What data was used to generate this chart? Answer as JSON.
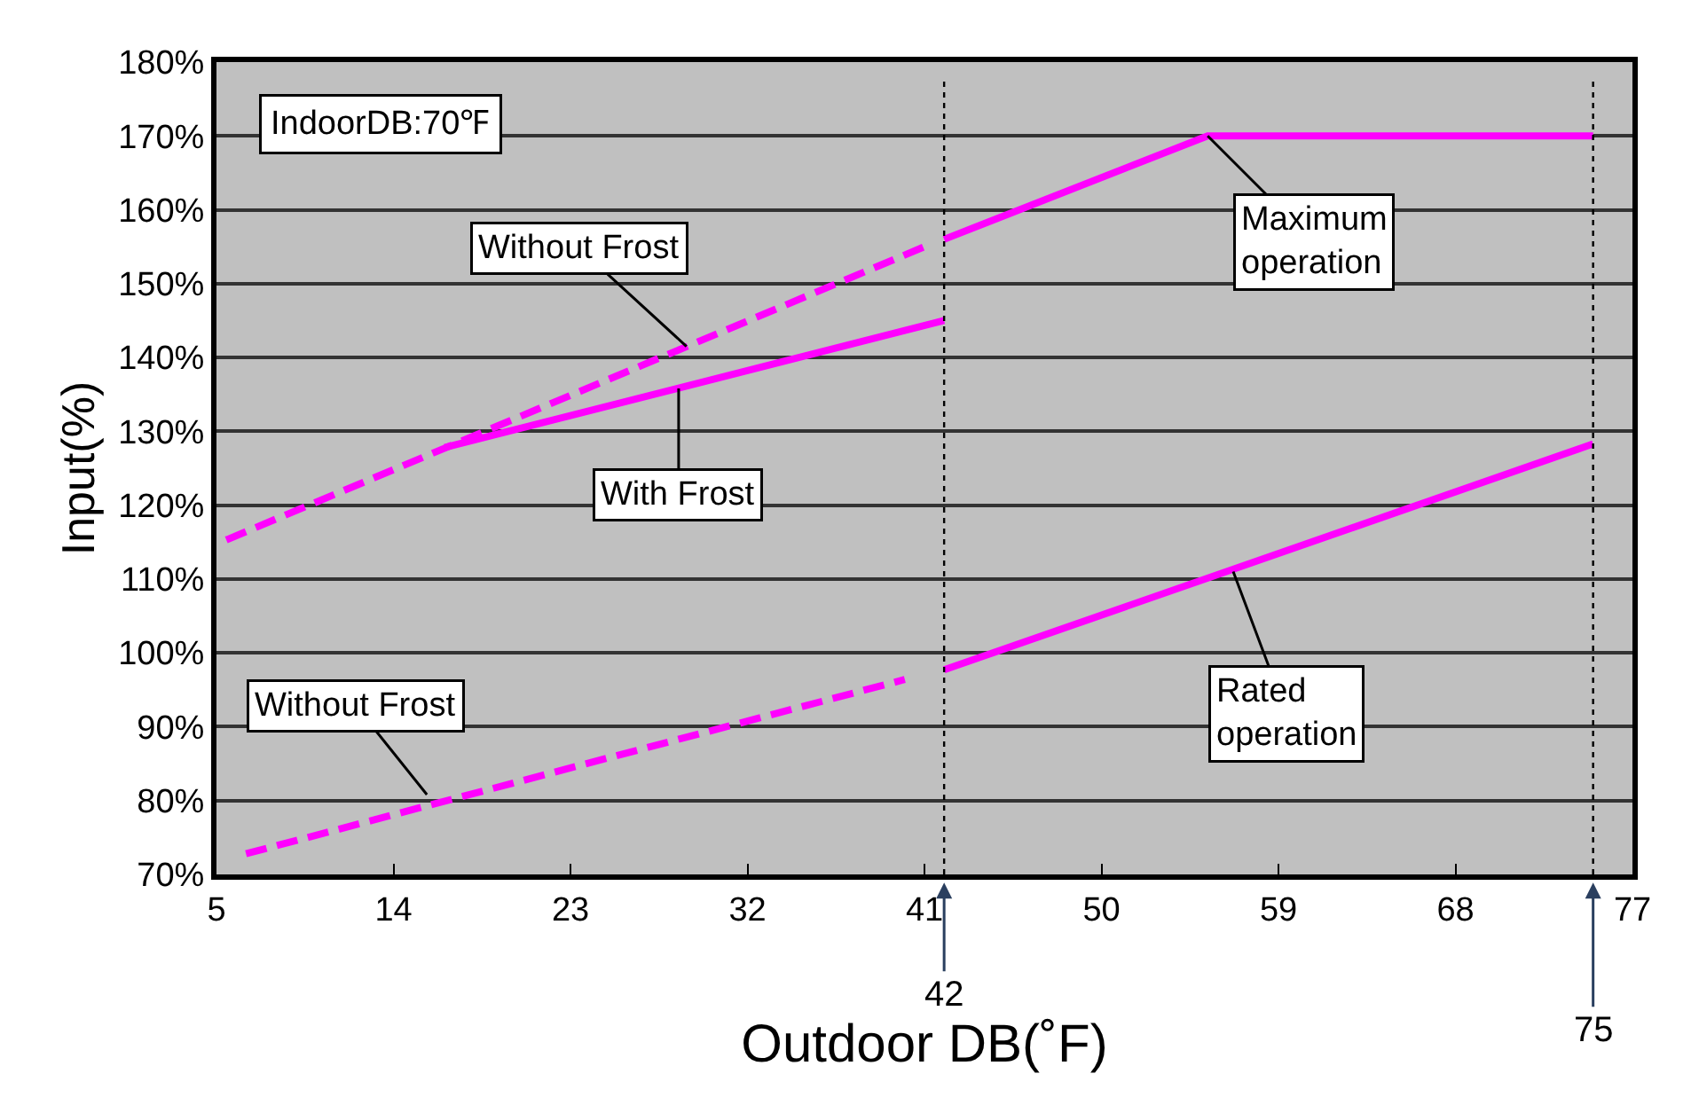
{
  "chart_data": {
    "type": "line",
    "xlabel": "Outdoor DB(˚F)",
    "ylabel": "Input(%)",
    "xlim": [
      5,
      77
    ],
    "xticks": [
      5,
      14,
      23,
      32,
      41,
      50,
      59,
      68,
      77
    ],
    "ylim": [
      70,
      180
    ],
    "yticks": [
      {
        "value": 70,
        "label": "70%"
      },
      {
        "value": 80,
        "label": "80%"
      },
      {
        "value": 90,
        "label": "90%"
      },
      {
        "value": 100,
        "label": "100%"
      },
      {
        "value": 110,
        "label": "110%"
      },
      {
        "value": 120,
        "label": "120%"
      },
      {
        "value": 130,
        "label": "130%"
      },
      {
        "value": 140,
        "label": "140%"
      },
      {
        "value": 150,
        "label": "150%"
      },
      {
        "value": 160,
        "label": "160%"
      },
      {
        "value": 170,
        "label": "170%"
      },
      {
        "value": 180,
        "label": "180%"
      }
    ],
    "grid": "y",
    "marker": "none",
    "series": [
      {
        "color": "#ff00ff",
        "line_style": "dashed",
        "x": [
          5.5,
          41
        ],
        "values": [
          115.3,
          155
        ]
      },
      {
        "color": "#ff00ff",
        "line_style": "solid",
        "x": [
          42,
          55.4,
          75
        ],
        "values": [
          156,
          170,
          170
        ]
      },
      {
        "color": "#ff00ff",
        "line_style": "solid",
        "x": [
          16.6,
          42
        ],
        "values": [
          127.8,
          145
        ]
      },
      {
        "color": "#ff00ff",
        "line_style": "dashed",
        "x": [
          6.5,
          40
        ],
        "values": [
          72.8,
          96.4
        ]
      },
      {
        "color": "#ff00ff",
        "line_style": "solid",
        "x": [
          42,
          75
        ],
        "values": [
          97.7,
          128.3
        ]
      }
    ],
    "ref_lines": [
      {
        "axis": "x",
        "value": 42,
        "label": "42",
        "line_style": "dotted",
        "color": "#000000"
      },
      {
        "axis": "x",
        "value": 75,
        "label": "75",
        "line_style": "dotted",
        "color": "#000000"
      }
    ],
    "annotations": [
      "IndoorDB:70℉",
      {
        "text": "Without Frost",
        "x": 28.9,
        "y": 141.5
      },
      {
        "text": "With Frost",
        "x": 28.5,
        "y": 135.8
      },
      {
        "text": "Maximum\noperation",
        "x": 55.4,
        "y": 170
      },
      {
        "text": "Rated\noperation",
        "x": 56.7,
        "y": 111
      },
      {
        "text": "Without Frost",
        "x": 15.7,
        "y": 80.8
      }
    ]
  }
}
